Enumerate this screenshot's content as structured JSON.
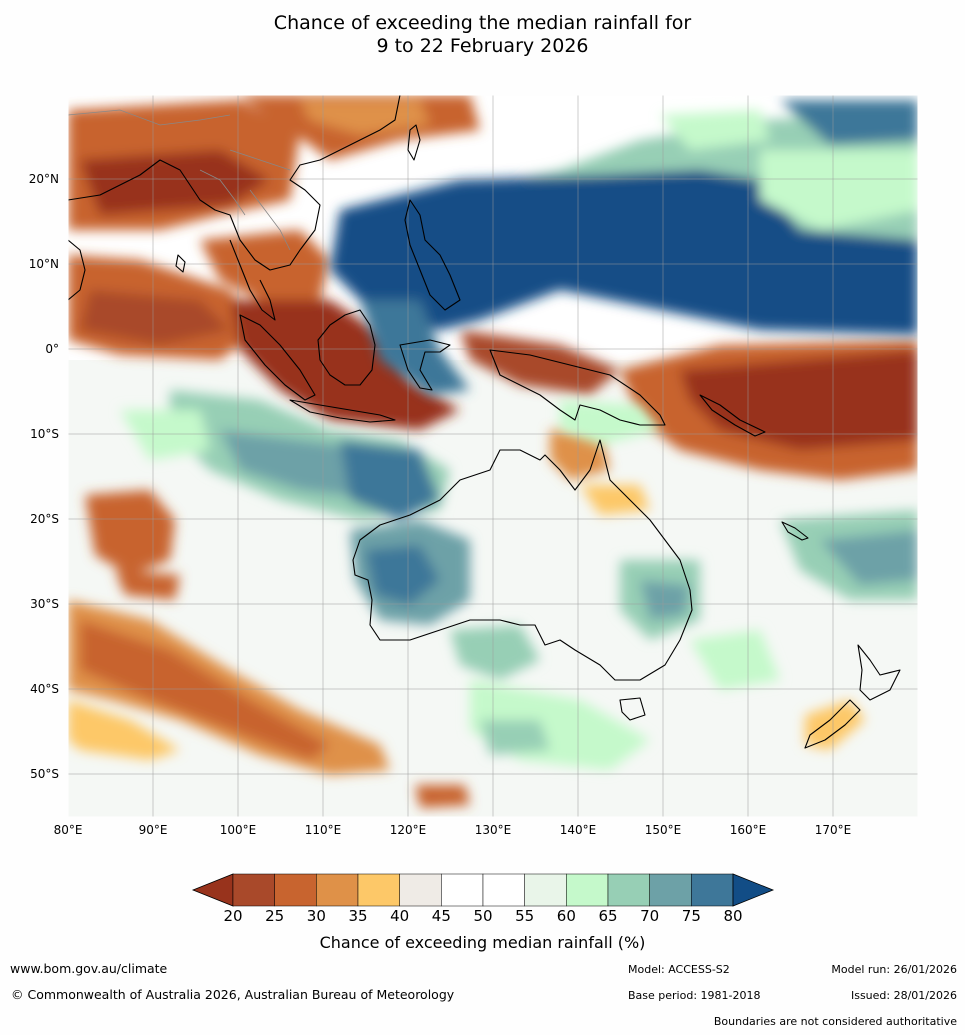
{
  "title": {
    "line1": "Chance of exceeding the median rainfall for",
    "line2": "9 to 22 February 2026"
  },
  "map": {
    "lon_range": [
      80,
      180
    ],
    "lat_range": [
      -55,
      30
    ],
    "lat_labels": [
      "20°N",
      "10°N",
      "0°",
      "10°S",
      "20°S",
      "30°S",
      "40°S",
      "50°S"
    ],
    "lat_values": [
      20,
      10,
      0,
      -10,
      -20,
      -30,
      -40,
      -50
    ],
    "lon_labels": [
      "80°E",
      "90°E",
      "100°E",
      "110°E",
      "120°E",
      "130°E",
      "140°E",
      "150°E",
      "160°E",
      "170°E"
    ],
    "lon_values": [
      80,
      90,
      100,
      110,
      120,
      130,
      140,
      150,
      160,
      170
    ]
  },
  "colorbar": {
    "ticks": [
      "20",
      "25",
      "30",
      "35",
      "40",
      "45",
      "50",
      "55",
      "60",
      "65",
      "70",
      "75",
      "80"
    ],
    "colors": [
      "#a9492a",
      "#c8642f",
      "#df9148",
      "#fdc868",
      "#efebe6",
      "#ffffff",
      "#ffffff",
      "#e9f5e9",
      "#c5f9cb",
      "#97cfb5",
      "#6da1a7",
      "#3e7799"
    ],
    "low_color": "#98331c",
    "high_color": "#124d86",
    "label": "Chance of exceeding median rainfall (%)"
  },
  "footer": {
    "url": "www.bom.gov.au/climate",
    "copyright": "© Commonwealth of Australia 2026, Australian Bureau of Meteorology",
    "model": "Model: ACCESS-S2",
    "base_period": "Base period: 1981-2018",
    "model_run": "Model run: 26/01/2026",
    "issued": "Issued: 28/01/2026",
    "disclaimer": "Boundaries are not considered authoritative"
  }
}
